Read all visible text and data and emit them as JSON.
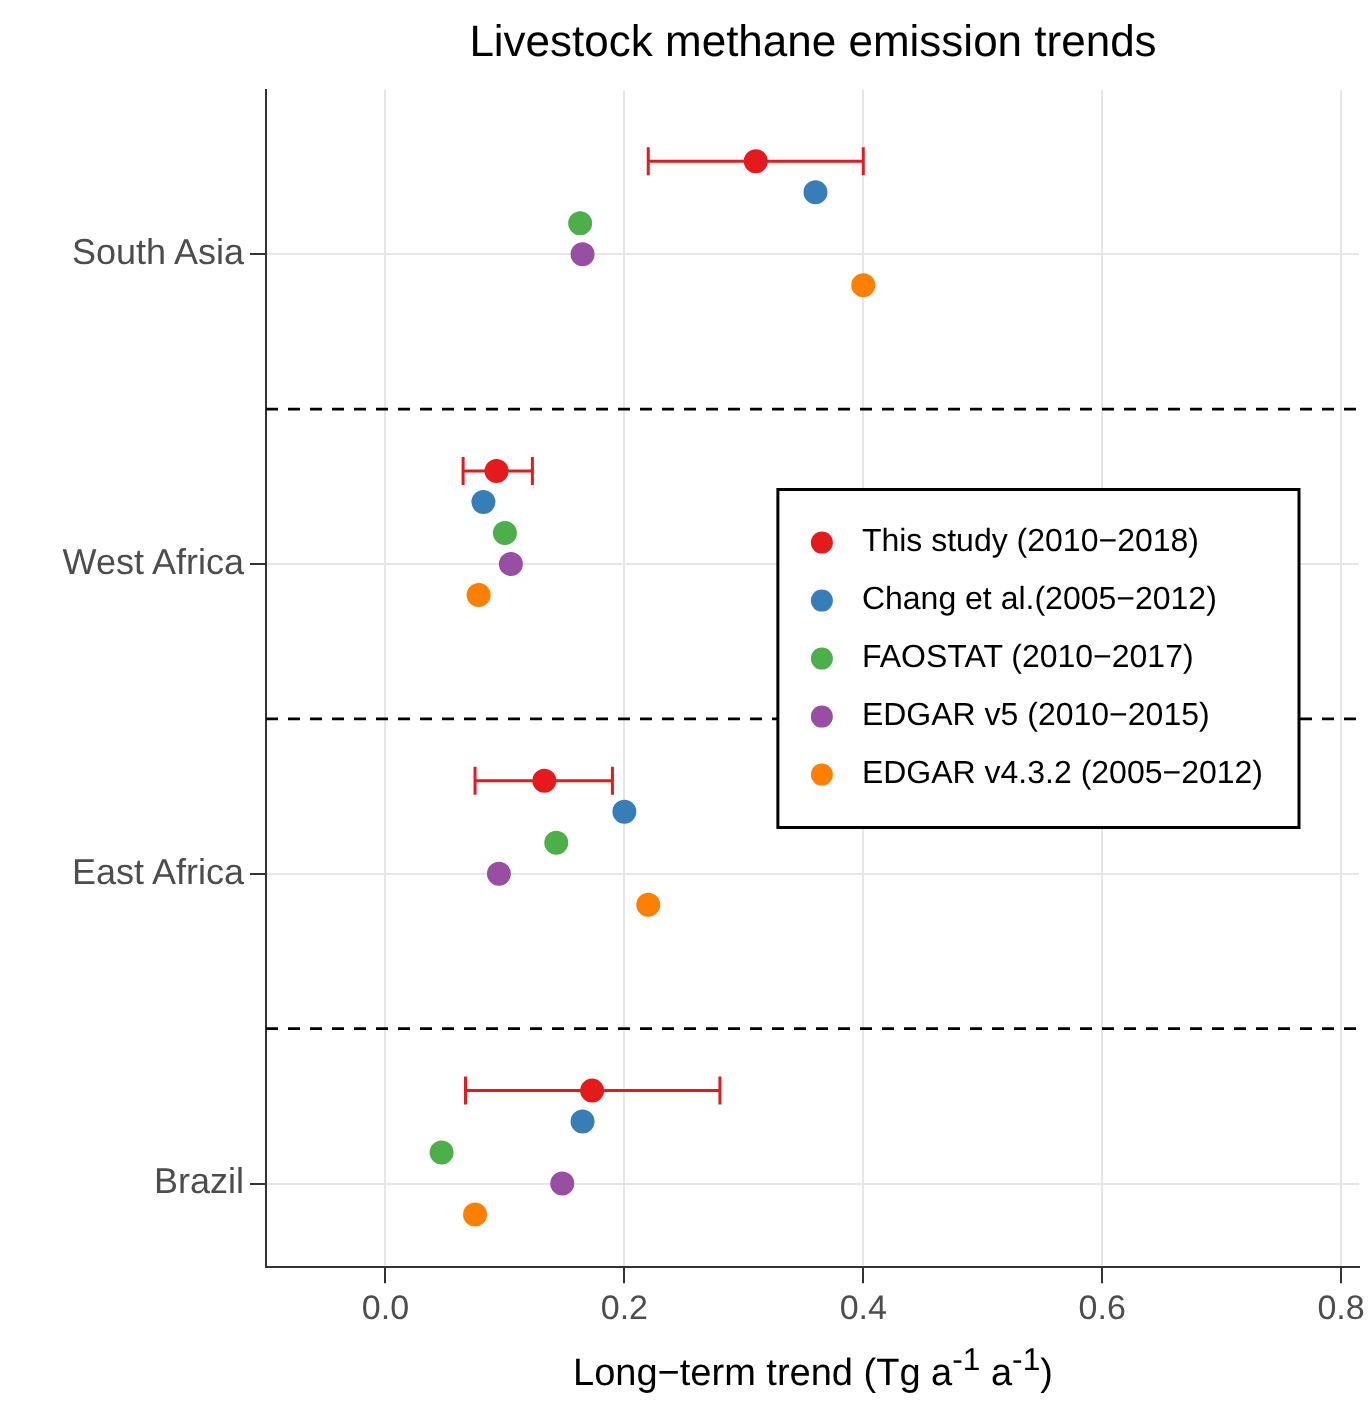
{
  "chart_data": {
    "type": "scatter",
    "orientation": "horizontal",
    "title": "Livestock methane emission trends",
    "xlabel": "Long−term trend (Tg a$^{-1}$ a$^{-1}$)",
    "categories": [
      "South Asia",
      "West Africa",
      "East Africa",
      "Brazil"
    ],
    "xlim": [
      -0.1,
      0.815
    ],
    "xticks": [
      {
        "value": 0,
        "label": "0.0"
      },
      0.2,
      0.4,
      0.6,
      0.8
    ],
    "series": [
      {
        "name": "This study (2010−2018)",
        "color": "#e41a1c",
        "values": [
          0.31,
          0.093,
          0.133,
          0.173
        ],
        "errors": [
          [
            0.22,
            0.4
          ],
          [
            0.065,
            0.123
          ],
          [
            0.075,
            0.19
          ],
          [
            0.067,
            0.28
          ]
        ]
      },
      {
        "name": "Chang et al.(2005−2012)",
        "color": "#377eb8",
        "values": [
          0.36,
          0.082,
          0.2,
          0.165
        ]
      },
      {
        "name": "FAOSTAT (2010−2017)",
        "color": "#4daf4a",
        "values": [
          0.163,
          0.1,
          0.143,
          0.047
        ]
      },
      {
        "name": "EDGAR v5 (2010−2015)",
        "color": "#984ea3",
        "values": [
          0.165,
          0.105,
          0.095,
          0.148
        ]
      },
      {
        "name": "EDGAR v4.3.2 (2005−2012)",
        "color": "#ff7f00",
        "values": [
          0.4,
          0.078,
          0.22,
          0.075
        ]
      }
    ],
    "grid": true,
    "legend": "right",
    "marker": "circle"
  }
}
